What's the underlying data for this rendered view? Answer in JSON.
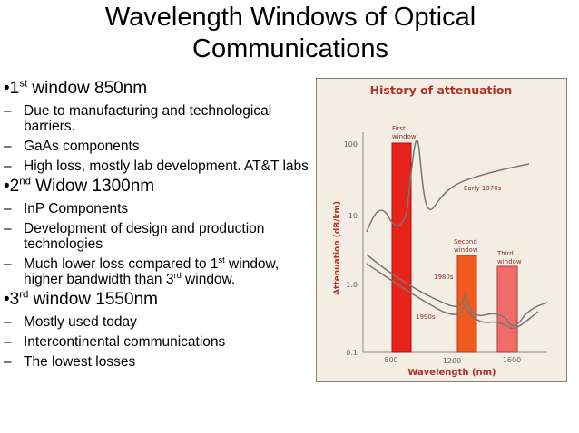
{
  "title_lines": [
    "Wavelength Windows of Optical",
    "Communications"
  ],
  "sections": [
    {
      "heading": [
        {
          "t": "1"
        },
        {
          "sup": "st"
        },
        {
          "t": " window 850nm"
        }
      ],
      "items": [
        [
          {
            "t": "Due to manufacturing and technological barriers."
          }
        ],
        [
          {
            "t": "GaAs components"
          }
        ],
        [
          {
            "t": "High loss, mostly lab development. AT&T labs"
          }
        ]
      ]
    },
    {
      "heading": [
        {
          "t": "2"
        },
        {
          "sup": "nd"
        },
        {
          "t": " Widow 1300nm"
        }
      ],
      "items": [
        [
          {
            "t": "InP Components"
          }
        ],
        [
          {
            "t": "Development of design and production technologies"
          }
        ],
        [
          {
            "t": "Much lower loss compared to 1"
          },
          {
            "sup": "st"
          },
          {
            "t": " window, higher bandwidth than 3"
          },
          {
            "sup": "rd"
          },
          {
            "t": " window."
          }
        ]
      ]
    },
    {
      "heading": [
        {
          "t": "3"
        },
        {
          "sup": "rd"
        },
        {
          "t": " window 1550nm"
        }
      ],
      "items": [
        [
          {
            "t": "Mostly used today"
          }
        ],
        [
          {
            "t": "Intercontinental communications"
          }
        ],
        [
          {
            "t": "The lowest losses"
          }
        ]
      ]
    }
  ],
  "figure": {
    "title": "History of attenuation",
    "y_label": "Attenuation (dB/km)",
    "x_label": "Wavelength (nm)",
    "y_tick_labels": [
      "100",
      "10",
      "1.0",
      "0.1"
    ],
    "x_tick_labels": [
      "800",
      "1200",
      "1600"
    ],
    "window_labels": [
      "First",
      "window",
      "Second",
      "window",
      "Third",
      "window"
    ],
    "curve_labels": [
      "Early 1970s",
      "1980s",
      "1990s"
    ]
  }
}
